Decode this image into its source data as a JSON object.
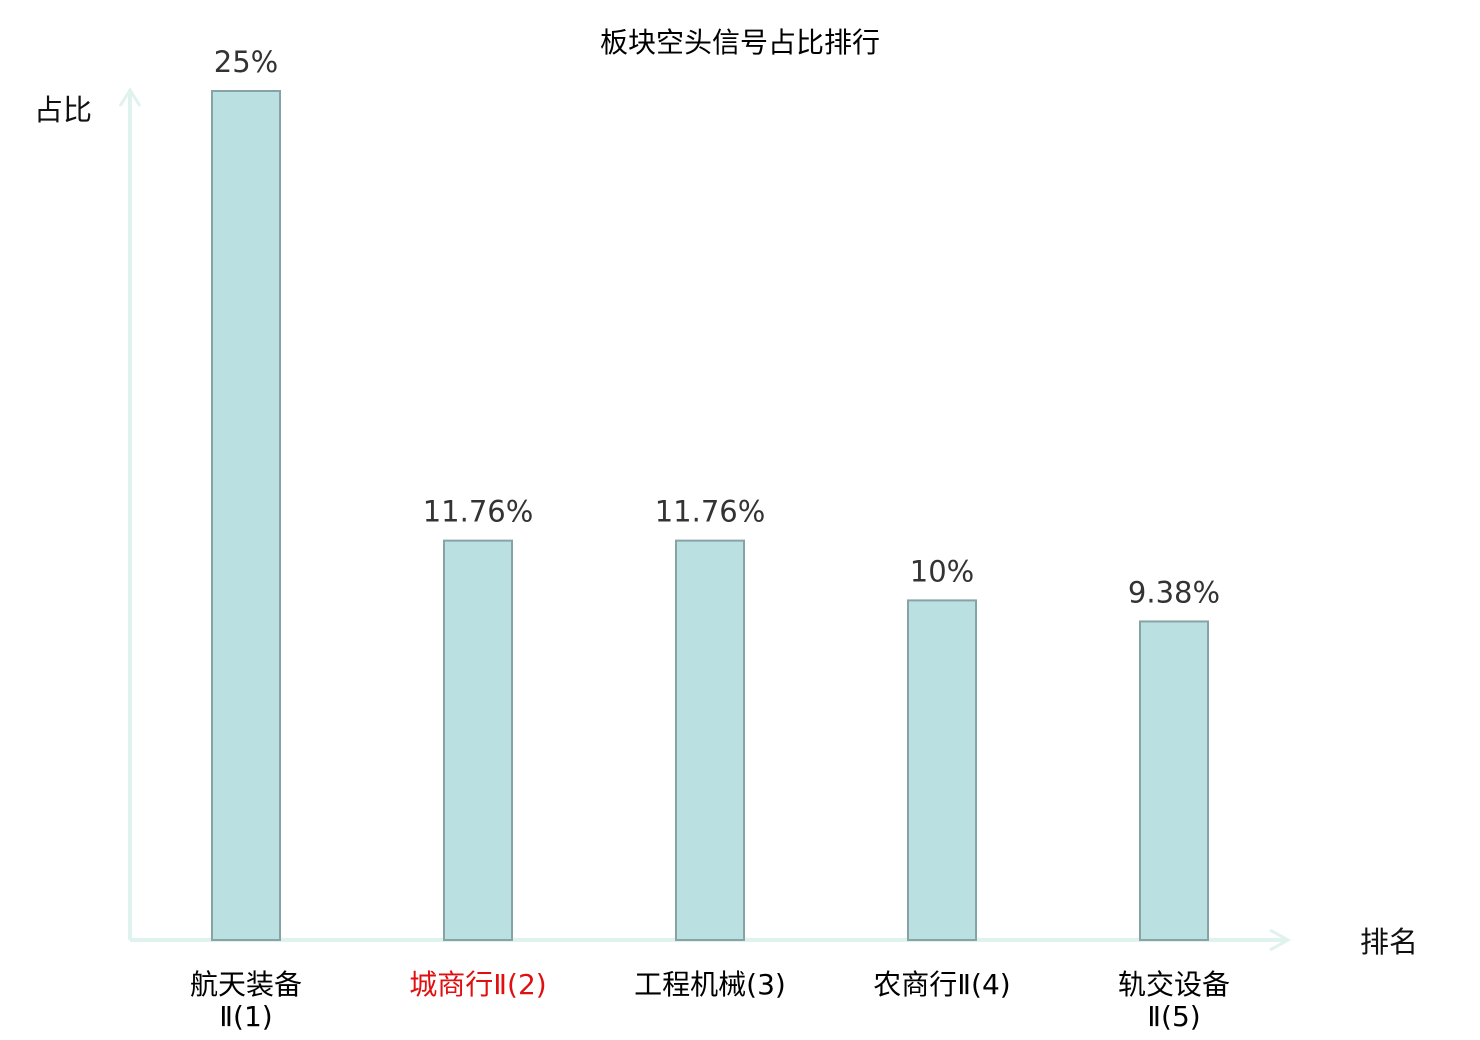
{
  "chart_data": {
    "type": "bar",
    "title": "板块空头信号占比排行",
    "xlabel": "排名",
    "ylabel": "占比",
    "ylim": [
      0,
      25
    ],
    "grid": false,
    "categories": [
      {
        "line1": "航天装备",
        "line2": "Ⅱ(1)",
        "highlight": false
      },
      {
        "line1": "城商行Ⅱ(2)",
        "line2": "",
        "highlight": true
      },
      {
        "line1": "工程机械(3)",
        "line2": "",
        "highlight": false
      },
      {
        "line1": "农商行Ⅱ(4)",
        "line2": "",
        "highlight": false
      },
      {
        "line1": "轨交设备",
        "line2": "Ⅱ(5)",
        "highlight": false
      }
    ],
    "values": [
      25,
      11.76,
      11.76,
      10,
      9.38
    ],
    "value_labels": [
      "25%",
      "11.76%",
      "11.76%",
      "10%",
      "9.38%"
    ]
  },
  "colors": {
    "bar_fill": "#bbe0e2",
    "bar_stroke": "#86a3a5",
    "axis": "#dff2ee",
    "text": "#000000",
    "value_text": "#333333",
    "highlight_text": "#e01010"
  }
}
